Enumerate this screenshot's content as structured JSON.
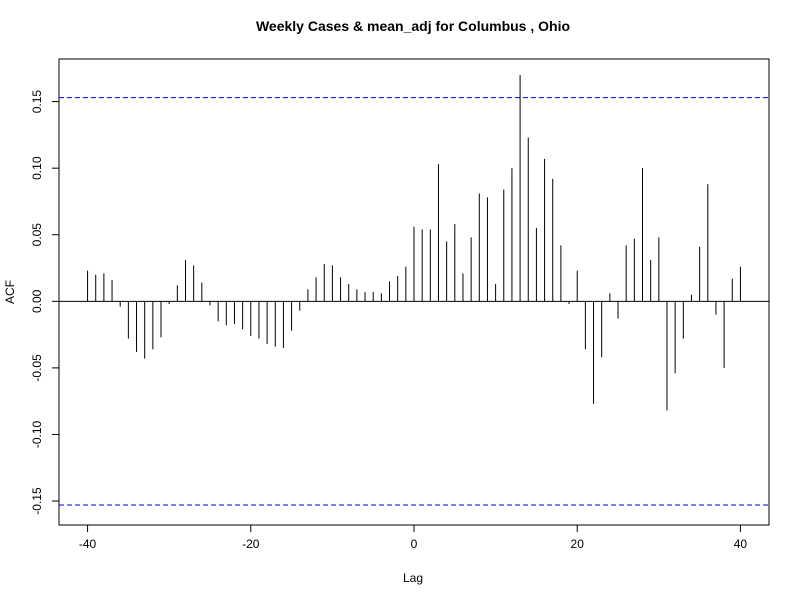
{
  "chart_data": {
    "type": "bar",
    "title": "Weekly Cases & mean_adj for Columbus , Ohio",
    "xlabel": "Lag",
    "ylabel": "ACF",
    "xlim": [
      -43.5,
      43.5
    ],
    "ylim": [
      -0.168,
      0.182
    ],
    "xticks": [
      -40,
      -20,
      0,
      20,
      40
    ],
    "xtick_labels": [
      "-40",
      "-20",
      "0",
      "20",
      "40"
    ],
    "yticks": [
      -0.15,
      -0.1,
      -0.05,
      0.0,
      0.05,
      0.1,
      0.15
    ],
    "ytick_labels": [
      "-0.15",
      "-0.10",
      "-0.05",
      "0.00",
      "0.05",
      "0.10",
      "0.15"
    ],
    "confidence_bound": 0.153,
    "confidence_color": "#0000cc",
    "grid": false,
    "lags": [
      -40,
      -39,
      -38,
      -37,
      -36,
      -35,
      -34,
      -33,
      -32,
      -31,
      -30,
      -29,
      -28,
      -27,
      -26,
      -25,
      -24,
      -23,
      -22,
      -21,
      -20,
      -19,
      -18,
      -17,
      -16,
      -15,
      -14,
      -13,
      -12,
      -11,
      -10,
      -9,
      -8,
      -7,
      -6,
      -5,
      -4,
      -3,
      -2,
      -1,
      0,
      1,
      2,
      3,
      4,
      5,
      6,
      7,
      8,
      9,
      10,
      11,
      12,
      13,
      14,
      15,
      16,
      17,
      18,
      19,
      20,
      21,
      22,
      23,
      24,
      25,
      26,
      27,
      28,
      29,
      30,
      31,
      32,
      33,
      34,
      35,
      36,
      37,
      38,
      39,
      40
    ],
    "values": [
      0.023,
      0.02,
      0.021,
      0.016,
      -0.004,
      -0.028,
      -0.038,
      -0.043,
      -0.036,
      -0.027,
      -0.002,
      0.012,
      0.031,
      0.027,
      0.014,
      -0.003,
      -0.015,
      -0.018,
      -0.017,
      -0.021,
      -0.026,
      -0.028,
      -0.032,
      -0.034,
      -0.035,
      -0.022,
      -0.007,
      0.009,
      0.018,
      0.028,
      0.027,
      0.018,
      0.013,
      0.009,
      0.007,
      0.007,
      0.006,
      0.015,
      0.019,
      0.026,
      0.056,
      0.054,
      0.054,
      0.103,
      0.045,
      0.058,
      0.021,
      0.048,
      0.081,
      0.078,
      0.013,
      0.084,
      0.1,
      0.17,
      0.123,
      0.055,
      0.107,
      0.092,
      0.042,
      -0.002,
      0.023,
      -0.036,
      -0.077,
      -0.042,
      0.006,
      -0.013,
      0.042,
      0.047,
      0.1,
      0.031,
      0.048,
      -0.082,
      -0.054,
      -0.028,
      0.005,
      0.041,
      0.088,
      -0.01,
      -0.05,
      0.017,
      0.026
    ]
  }
}
